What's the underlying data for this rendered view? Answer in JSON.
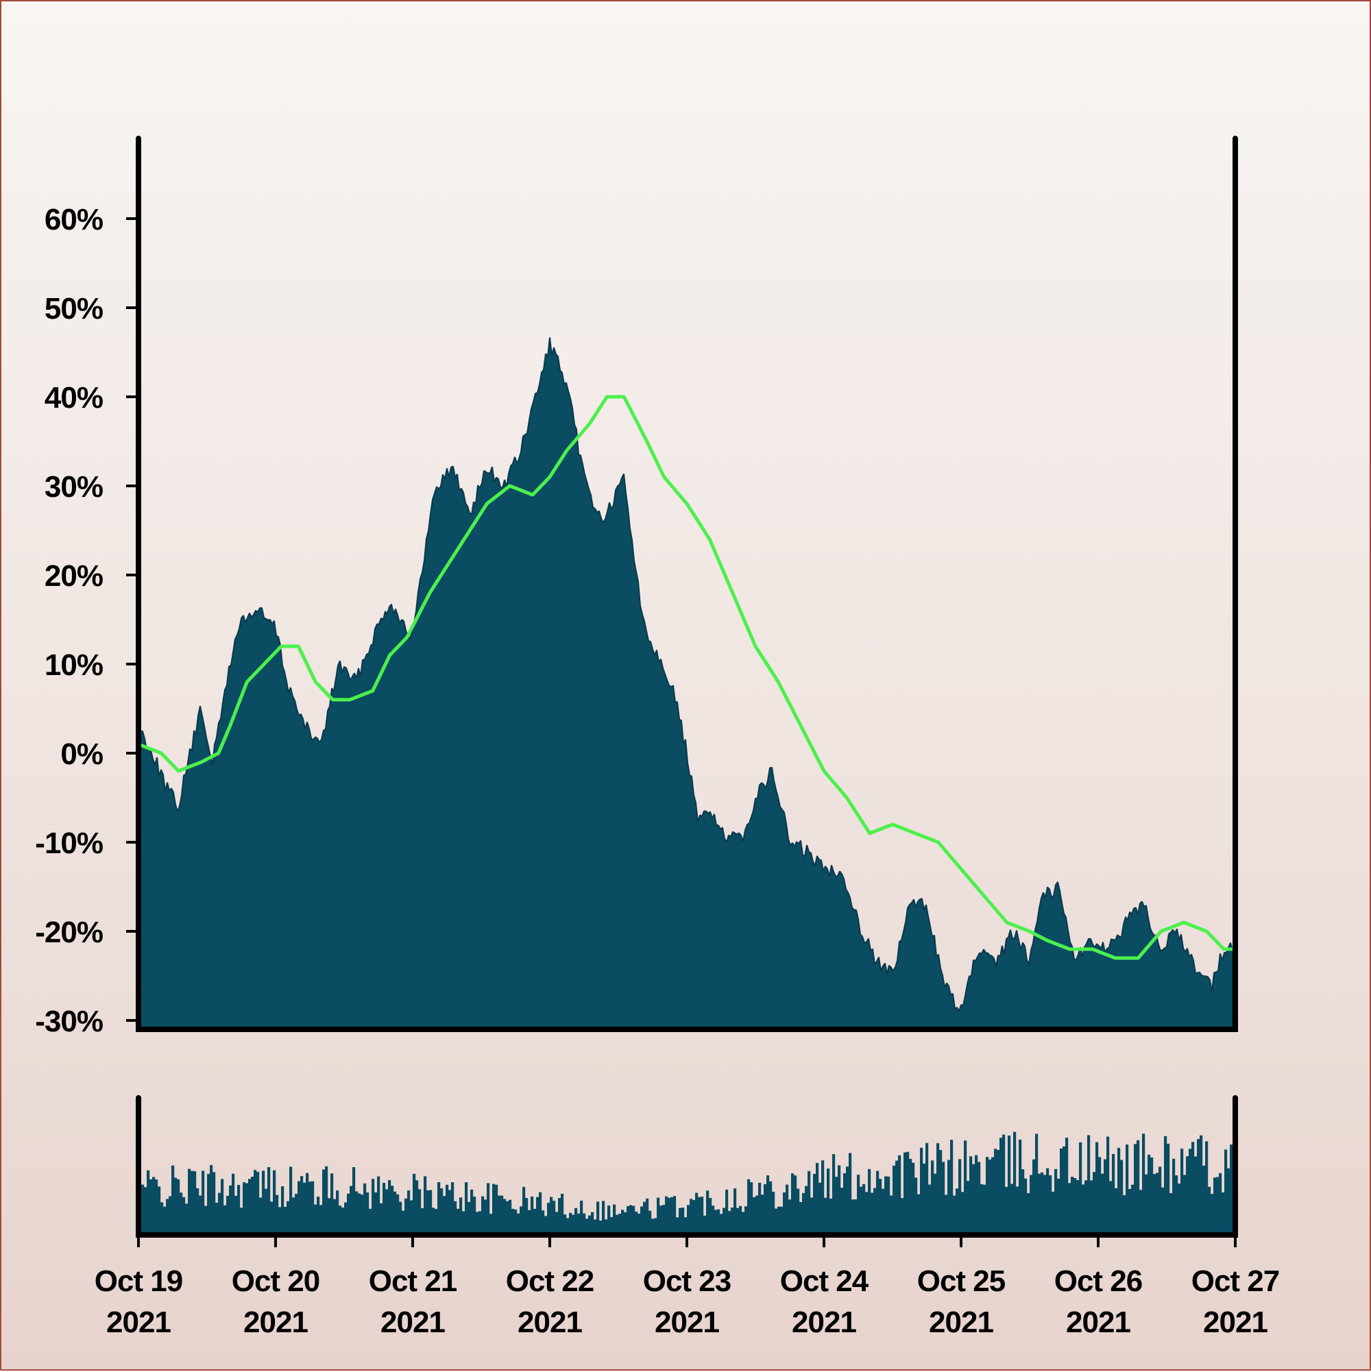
{
  "colors": {
    "area_fill": "#0a4c62",
    "area_edge": "#09384a",
    "moving_average": "#4cf04c",
    "axis": "#000000",
    "background_top": "#f8f5f2",
    "background_bottom": "#e7d3cd"
  },
  "chart_data": {
    "type": "area",
    "title": "",
    "xlabel": "",
    "ylabel": "",
    "x_start": "2021-10-19",
    "x_end": "2021-10-27",
    "xlim": [
      "2021-10-19",
      "2021-10-27"
    ],
    "ylim": [
      -0.31,
      0.69
    ],
    "y_format": "percent",
    "grid": false,
    "legend": "none",
    "x_ticks": [
      {
        "date": "2021-10-19",
        "line1": "Oct 19",
        "line2": "2021"
      },
      {
        "date": "2021-10-20",
        "line1": "Oct 20",
        "line2": "2021"
      },
      {
        "date": "2021-10-21",
        "line1": "Oct 21",
        "line2": "2021"
      },
      {
        "date": "2021-10-22",
        "line1": "Oct 22",
        "line2": "2021"
      },
      {
        "date": "2021-10-23",
        "line1": "Oct 23",
        "line2": "2021"
      },
      {
        "date": "2021-10-24",
        "line1": "Oct 24",
        "line2": "2021"
      },
      {
        "date": "2021-10-25",
        "line1": "Oct 25",
        "line2": "2021"
      },
      {
        "date": "2021-10-26",
        "line1": "Oct 26",
        "line2": "2021"
      },
      {
        "date": "2021-10-27",
        "line1": "Oct 27",
        "line2": "2021"
      }
    ],
    "y_ticks": [
      {
        "value": 0.6,
        "label": "60%"
      },
      {
        "value": 0.5,
        "label": "50%"
      },
      {
        "value": 0.4,
        "label": "40%"
      },
      {
        "value": 0.3,
        "label": "30%"
      },
      {
        "value": 0.2,
        "label": "20%"
      },
      {
        "value": 0.1,
        "label": "10%"
      },
      {
        "value": 0.0,
        "label": "0%"
      },
      {
        "value": -0.1,
        "label": "-10%"
      },
      {
        "value": -0.2,
        "label": "-20%"
      },
      {
        "value": -0.3,
        "label": "-30%"
      }
    ],
    "series": [
      {
        "kind": "area",
        "x": [
          "2021-10-19 00:00",
          "2021-10-19 02:30",
          "2021-10-19 05:00",
          "2021-10-19 07:00",
          "2021-10-19 09:00",
          "2021-10-19 11:00",
          "2021-10-19 13:00",
          "2021-10-19 16:00",
          "2021-10-19 18:00",
          "2021-10-19 21:00",
          "2021-10-20 00:00",
          "2021-10-20 02:00",
          "2021-10-20 05:00",
          "2021-10-20 08:00",
          "2021-10-20 11:00",
          "2021-10-20 14:00",
          "2021-10-20 17:00",
          "2021-10-20 20:00",
          "2021-10-20 22:00",
          "2021-10-21 00:00",
          "2021-10-21 02:00",
          "2021-10-21 04:00",
          "2021-10-21 07:00",
          "2021-10-21 10:00",
          "2021-10-21 13:00",
          "2021-10-21 16:00",
          "2021-10-21 19:00",
          "2021-10-21 22:00",
          "2021-10-22 00:00",
          "2021-10-22 02:00",
          "2021-10-22 04:00",
          "2021-10-22 06:00",
          "2021-10-22 09:00",
          "2021-10-22 11:00",
          "2021-10-22 13:00",
          "2021-10-22 16:00",
          "2021-10-22 18:00",
          "2021-10-22 20:00",
          "2021-10-22 22:00",
          "2021-10-23 00:00",
          "2021-10-23 02:00",
          "2021-10-23 04:00",
          "2021-10-23 07:00",
          "2021-10-23 10:00",
          "2021-10-23 12:00",
          "2021-10-23 15:00",
          "2021-10-23 18:00",
          "2021-10-23 21:00",
          "2021-10-24 00:00",
          "2021-10-24 03:00",
          "2021-10-24 06:00",
          "2021-10-24 09:00",
          "2021-10-24 12:00",
          "2021-10-24 15:00",
          "2021-10-24 18:00",
          "2021-10-24 21:00",
          "2021-10-25 00:00",
          "2021-10-25 03:00",
          "2021-10-25 06:00",
          "2021-10-25 09:00",
          "2021-10-25 12:00",
          "2021-10-25 14:00",
          "2021-10-25 17:00",
          "2021-10-25 20:00",
          "2021-10-25 23:00",
          "2021-10-26 02:00",
          "2021-10-26 05:00",
          "2021-10-26 08:00",
          "2021-10-26 11:00",
          "2021-10-26 14:00",
          "2021-10-26 17:00",
          "2021-10-26 20:00",
          "2021-10-26 22:00",
          "2021-10-27 00:00"
        ],
        "y": [
          0.03,
          0.0,
          -0.04,
          -0.06,
          0.0,
          0.05,
          -0.01,
          0.1,
          0.15,
          0.16,
          0.14,
          0.08,
          0.03,
          0.01,
          0.1,
          0.08,
          0.13,
          0.17,
          0.15,
          0.13,
          0.22,
          0.3,
          0.32,
          0.27,
          0.32,
          0.3,
          0.34,
          0.41,
          0.46,
          0.43,
          0.38,
          0.31,
          0.26,
          0.28,
          0.31,
          0.16,
          0.12,
          0.1,
          0.06,
          0.0,
          -0.08,
          -0.06,
          -0.1,
          -0.09,
          -0.05,
          -0.02,
          -0.1,
          -0.11,
          -0.13,
          -0.13,
          -0.19,
          -0.23,
          -0.25,
          -0.17,
          -0.17,
          -0.26,
          -0.29,
          -0.22,
          -0.24,
          -0.2,
          -0.23,
          -0.16,
          -0.15,
          -0.23,
          -0.21,
          -0.22,
          -0.19,
          -0.17,
          -0.22,
          -0.2,
          -0.24,
          -0.26,
          -0.22,
          -0.22
        ]
      },
      {
        "kind": "line",
        "x": [
          "2021-10-19 00:00",
          "2021-10-19 04:00",
          "2021-10-19 07:00",
          "2021-10-19 11:00",
          "2021-10-19 14:00",
          "2021-10-19 16:00",
          "2021-10-19 19:00",
          "2021-10-19 22:00",
          "2021-10-20 01:00",
          "2021-10-20 04:00",
          "2021-10-20 07:00",
          "2021-10-20 10:00",
          "2021-10-20 13:00",
          "2021-10-20 17:00",
          "2021-10-20 20:00",
          "2021-10-20 23:00",
          "2021-10-21 03:00",
          "2021-10-21 07:00",
          "2021-10-21 10:00",
          "2021-10-21 13:00",
          "2021-10-21 17:00",
          "2021-10-21 21:00",
          "2021-10-22 00:00",
          "2021-10-22 03:00",
          "2021-10-22 07:00",
          "2021-10-22 10:00",
          "2021-10-22 13:00",
          "2021-10-22 17:00",
          "2021-10-22 20:00",
          "2021-10-23 00:00",
          "2021-10-23 04:00",
          "2021-10-23 08:00",
          "2021-10-23 12:00",
          "2021-10-23 16:00",
          "2021-10-23 20:00",
          "2021-10-24 00:00",
          "2021-10-24 04:00",
          "2021-10-24 08:00",
          "2021-10-24 12:00",
          "2021-10-24 16:00",
          "2021-10-24 20:00",
          "2021-10-25 00:00",
          "2021-10-25 04:00",
          "2021-10-25 08:00",
          "2021-10-25 12:00",
          "2021-10-25 15:00",
          "2021-10-25 19:00",
          "2021-10-25 23:00",
          "2021-10-26 03:00",
          "2021-10-26 07:00",
          "2021-10-26 11:00",
          "2021-10-26 15:00",
          "2021-10-26 19:00",
          "2021-10-26 22:00",
          "2021-10-27 00:00"
        ],
        "y": [
          0.01,
          0.0,
          -0.02,
          -0.01,
          0.0,
          0.03,
          0.08,
          0.1,
          0.12,
          0.12,
          0.08,
          0.06,
          0.06,
          0.07,
          0.11,
          0.13,
          0.18,
          0.22,
          0.25,
          0.28,
          0.3,
          0.29,
          0.31,
          0.34,
          0.37,
          0.4,
          0.4,
          0.35,
          0.31,
          0.28,
          0.24,
          0.18,
          0.12,
          0.08,
          0.03,
          -0.02,
          -0.05,
          -0.09,
          -0.08,
          -0.09,
          -0.1,
          -0.13,
          -0.16,
          -0.19,
          -0.2,
          -0.21,
          -0.22,
          -0.22,
          -0.23,
          -0.23,
          -0.2,
          -0.19,
          -0.2,
          -0.22,
          -0.22
        ]
      },
      {
        "kind": "volume",
        "x": [
          "2021-10-19",
          "2021-10-19 12:00",
          "2021-10-20",
          "2021-10-20 12:00",
          "2021-10-21",
          "2021-10-21 12:00",
          "2021-10-22",
          "2021-10-22 12:00",
          "2021-10-23",
          "2021-10-23 12:00",
          "2021-10-24",
          "2021-10-24 12:00",
          "2021-10-25",
          "2021-10-25 12:00",
          "2021-10-26",
          "2021-10-26 12:00",
          "2021-10-27"
        ],
        "level": [
          0.55,
          0.58,
          0.58,
          0.56,
          0.5,
          0.44,
          0.36,
          0.28,
          0.36,
          0.52,
          0.66,
          0.72,
          0.8,
          0.86,
          0.82,
          0.84,
          0.8
        ]
      }
    ]
  }
}
